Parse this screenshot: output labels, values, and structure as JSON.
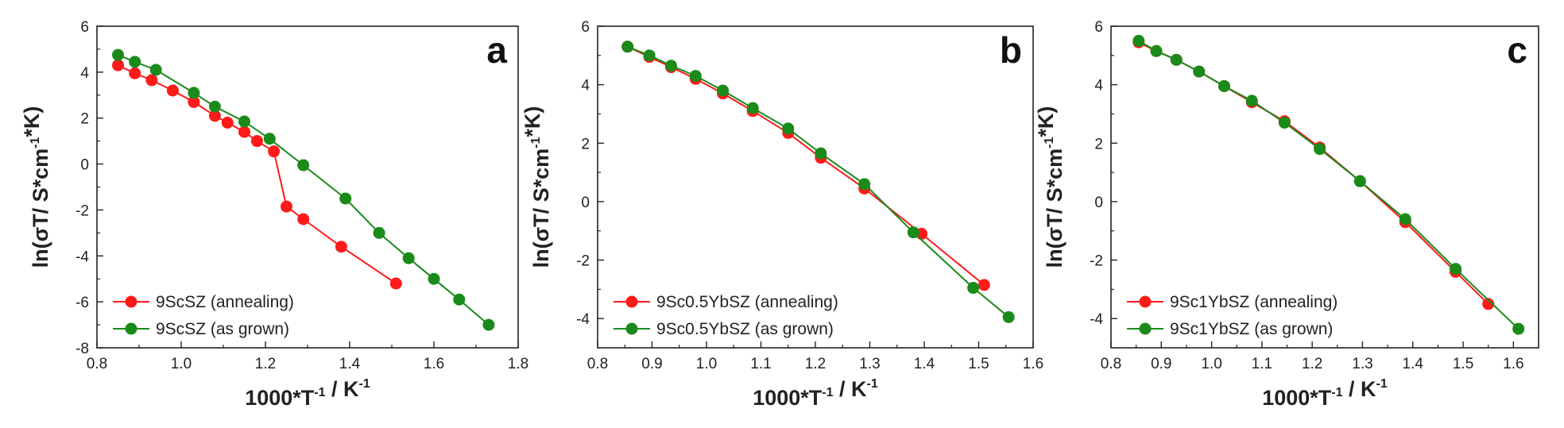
{
  "colors": {
    "annealing": "#ff1a1a",
    "as_grown": "#1a8a1a",
    "axis": "#222222"
  },
  "chart_data": [
    {
      "type": "line",
      "panel_label": "a",
      "xlabel": "1000*T⁻¹ / K⁻¹",
      "ylabel": "ln(σT/ S*cm⁻¹*K)",
      "xlim": [
        0.8,
        1.8
      ],
      "ylim": [
        -8,
        6
      ],
      "xticks": [
        0.8,
        1.0,
        1.2,
        1.4,
        1.6,
        1.8
      ],
      "xtick_labels": [
        "0.8",
        "1.0",
        "1.2",
        "1.4",
        "1.6",
        "1.8"
      ],
      "yticks": [
        -8,
        -6,
        -4,
        -2,
        0,
        2,
        4,
        6
      ],
      "ytick_labels": [
        "-8",
        "-6",
        "-4",
        "-2",
        "0",
        "2",
        "4",
        "6"
      ],
      "legend_position": "bottom-left",
      "series": [
        {
          "name": "9ScSZ (annealing)",
          "color_key": "annealing",
          "x": [
            0.85,
            0.89,
            0.93,
            0.98,
            1.03,
            1.08,
            1.11,
            1.15,
            1.18,
            1.22,
            1.25,
            1.29,
            1.38,
            1.51
          ],
          "y": [
            4.3,
            3.95,
            3.65,
            3.2,
            2.7,
            2.1,
            1.8,
            1.4,
            1.0,
            0.55,
            -1.85,
            -2.4,
            -3.6,
            -5.2
          ]
        },
        {
          "name": "9ScSZ (as grown)",
          "color_key": "as_grown",
          "x": [
            0.85,
            0.89,
            0.94,
            1.03,
            1.08,
            1.15,
            1.21,
            1.29,
            1.39,
            1.47,
            1.54,
            1.6,
            1.66,
            1.73
          ],
          "y": [
            4.75,
            4.45,
            4.1,
            3.1,
            2.5,
            1.85,
            1.1,
            -0.05,
            -1.5,
            -3.0,
            -4.1,
            -5.0,
            -5.9,
            -7.0
          ]
        }
      ]
    },
    {
      "type": "line",
      "panel_label": "b",
      "xlabel": "1000*T⁻¹ / K⁻¹",
      "ylabel": "ln(σT/ S*cm⁻¹*K)",
      "xlim": [
        0.8,
        1.6
      ],
      "ylim": [
        -5,
        6
      ],
      "xticks": [
        0.8,
        0.9,
        1.0,
        1.1,
        1.2,
        1.3,
        1.4,
        1.5,
        1.6
      ],
      "xtick_labels": [
        "0.8",
        "0.9",
        "1.0",
        "1.1",
        "1.2",
        "1.3",
        "1.4",
        "1.5",
        "1.6"
      ],
      "yticks": [
        -4,
        -2,
        0,
        2,
        4,
        6
      ],
      "ytick_labels": [
        "-4",
        "-2",
        "0",
        "2",
        "4",
        "6"
      ],
      "legend_position": "bottom-left",
      "series": [
        {
          "name": "9Sc0.5YbSZ (annealing)",
          "color_key": "annealing",
          "x": [
            0.855,
            0.895,
            0.935,
            0.98,
            1.03,
            1.085,
            1.15,
            1.21,
            1.29,
            1.395,
            1.51
          ],
          "y": [
            5.3,
            4.95,
            4.6,
            4.2,
            3.7,
            3.1,
            2.35,
            1.5,
            0.45,
            -1.1,
            -2.85
          ]
        },
        {
          "name": "9Sc0.5YbSZ (as grown)",
          "color_key": "as_grown",
          "x": [
            0.855,
            0.895,
            0.935,
            0.98,
            1.03,
            1.085,
            1.15,
            1.21,
            1.29,
            1.38,
            1.49,
            1.555
          ],
          "y": [
            5.3,
            5.0,
            4.65,
            4.3,
            3.8,
            3.2,
            2.5,
            1.65,
            0.6,
            -1.05,
            -2.95,
            -3.95
          ]
        }
      ]
    },
    {
      "type": "line",
      "panel_label": "c",
      "xlabel": "1000*T⁻¹ / K⁻¹",
      "ylabel": "ln(σT/ S*cm⁻¹*K)",
      "xlim": [
        0.8,
        1.65
      ],
      "ylim": [
        -5,
        6
      ],
      "xticks": [
        0.8,
        0.9,
        1.0,
        1.1,
        1.2,
        1.3,
        1.4,
        1.5,
        1.6
      ],
      "xtick_labels": [
        "0.8",
        "0.9",
        "1.0",
        "1.1",
        "1.2",
        "1.3",
        "1.4",
        "1.5",
        "1.6"
      ],
      "yticks": [
        -4,
        -2,
        0,
        2,
        4,
        6
      ],
      "ytick_labels": [
        "-4",
        "-2",
        "0",
        "2",
        "4",
        "6"
      ],
      "legend_position": "bottom-left",
      "series": [
        {
          "name": "9Sc1YbSZ (annealing)",
          "color_key": "annealing",
          "x": [
            0.855,
            0.89,
            0.93,
            0.975,
            1.025,
            1.08,
            1.145,
            1.215,
            1.295,
            1.385,
            1.485,
            1.55
          ],
          "y": [
            5.45,
            5.15,
            4.85,
            4.45,
            3.95,
            3.4,
            2.75,
            1.85,
            0.7,
            -0.7,
            -2.4,
            -3.5
          ]
        },
        {
          "name": "9Sc1YbSZ (as grown)",
          "color_key": "as_grown",
          "x": [
            0.855,
            0.89,
            0.93,
            0.975,
            1.025,
            1.08,
            1.145,
            1.215,
            1.295,
            1.385,
            1.485,
            1.61
          ],
          "y": [
            5.5,
            5.15,
            4.85,
            4.45,
            3.95,
            3.45,
            2.7,
            1.8,
            0.7,
            -0.6,
            -2.3,
            -4.35
          ]
        }
      ]
    }
  ]
}
